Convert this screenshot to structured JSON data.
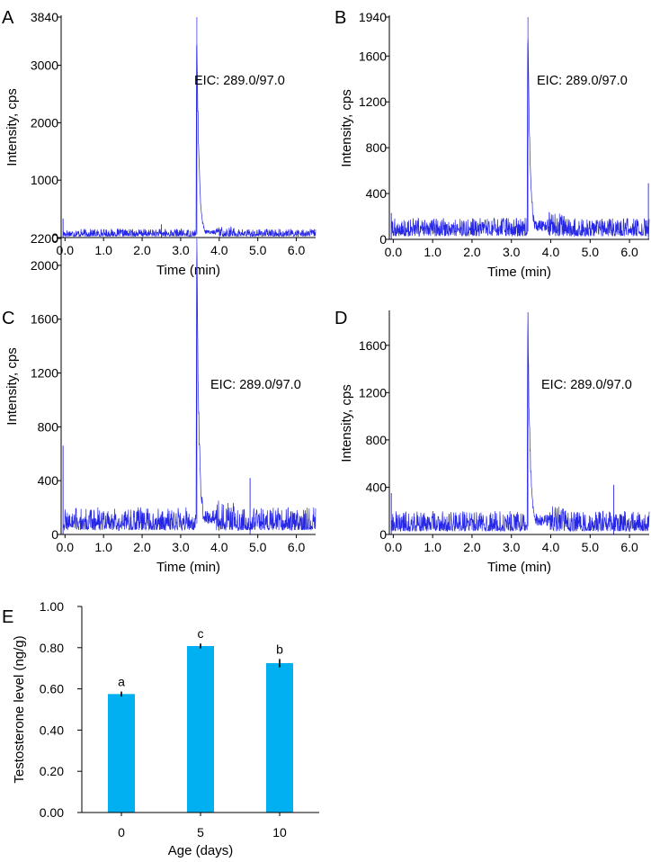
{
  "colors": {
    "trace": "#2626e6",
    "bar": "#00b0f0",
    "axis": "#000000",
    "errorbar": "#000000"
  },
  "chart_data": [
    {
      "type": "line",
      "panel": "A",
      "title": "",
      "annotation": "EIC: 289.0/97.0",
      "xlabel": "Time (min)",
      "ylabel": "Intensity, cps",
      "xlim": [
        -0.1,
        6.5
      ],
      "ylim": [
        0,
        3840
      ],
      "xticks": [
        "0.0",
        "1.0",
        "2.0",
        "3.0",
        "4.0",
        "5.0",
        "6.0"
      ],
      "yticks": [
        "0",
        "1000",
        "2000",
        "3000",
        "3840"
      ],
      "ytick_values": [
        0,
        1000,
        2000,
        3000,
        3840
      ],
      "baseline_level": 55,
      "noise_amplitude": 130,
      "peak": {
        "x": 3.42,
        "height": 3840,
        "tail_level": 300
      },
      "spikes": [
        {
          "x": -0.05,
          "y": 330
        },
        {
          "x": 2.5,
          "y": 230
        }
      ]
    },
    {
      "type": "line",
      "panel": "B",
      "title": "",
      "annotation": "EIC: 289.0/97.0",
      "xlabel": "Time (min)",
      "ylabel": "Intensity, cps",
      "xlim": [
        -0.1,
        6.5
      ],
      "ylim": [
        0,
        1940
      ],
      "xticks": [
        "0.0",
        "1.0",
        "2.0",
        "3.0",
        "4.0",
        "5.0",
        "6.0"
      ],
      "yticks": [
        "0",
        "400",
        "800",
        "1200",
        "1600",
        "1940"
      ],
      "ytick_values": [
        0,
        400,
        800,
        1200,
        1600,
        1940
      ],
      "baseline_level": 70,
      "noise_amplitude": 160,
      "peak": {
        "x": 3.42,
        "height": 1940,
        "tail_level": 450
      },
      "spikes": [
        {
          "x": 6.48,
          "y": 490
        },
        {
          "x": -0.05,
          "y": 230
        }
      ]
    },
    {
      "type": "line",
      "panel": "C",
      "title": "",
      "annotation": "EIC: 289.0/97.0",
      "xlabel": "Time (min)",
      "ylabel": "Intensity, cps",
      "xlim": [
        -0.1,
        6.5
      ],
      "ylim": [
        0,
        2200
      ],
      "xticks": [
        "0.0",
        "1.0",
        "2.0",
        "3.0",
        "4.0",
        "5.0",
        "6.0"
      ],
      "yticks": [
        "0",
        "400",
        "800",
        "1200",
        "1600",
        "2000",
        "2200"
      ],
      "ytick_values": [
        0,
        400,
        800,
        1200,
        1600,
        2000,
        2200
      ],
      "baseline_level": 80,
      "noise_amplitude": 170,
      "peak": {
        "x": 3.42,
        "height": 2200,
        "tail_level": 480
      },
      "spikes": [
        {
          "x": -0.05,
          "y": 660
        },
        {
          "x": 4.8,
          "y": 420
        }
      ]
    },
    {
      "type": "line",
      "panel": "D",
      "title": "",
      "annotation": "EIC: 289.0/97.0",
      "xlabel": "Time (min)",
      "ylabel": "Intensity, cps",
      "xlim": [
        -0.1,
        6.5
      ],
      "ylim": [
        0,
        1880
      ],
      "xticks": [
        "0.0",
        "1.0",
        "2.0",
        "3.0",
        "4.0",
        "5.0",
        "6.0"
      ],
      "yticks": [
        "0",
        "400",
        "800",
        "1200",
        "1600"
      ],
      "ytick_values": [
        0,
        400,
        800,
        1200,
        1600
      ],
      "baseline_level": 70,
      "noise_amplitude": 170,
      "peak": {
        "x": 3.42,
        "height": 1880,
        "tail_level": 450
      },
      "spikes": [
        {
          "x": 5.6,
          "y": 420
        },
        {
          "x": -0.05,
          "y": 350
        }
      ]
    },
    {
      "type": "bar",
      "panel": "E",
      "title": "",
      "xlabel": "Age (days)",
      "ylabel": "Testosterone level (ng/g)",
      "categories": [
        "0",
        "5",
        "10"
      ],
      "values": [
        0.575,
        0.808,
        0.725
      ],
      "errors": [
        0.012,
        0.012,
        0.02
      ],
      "significance": [
        "a",
        "c",
        "b"
      ],
      "ylim": [
        0,
        1.0
      ],
      "yticks": [
        "0.00",
        "0.20",
        "0.40",
        "0.60",
        "0.80",
        "1.00"
      ],
      "ytick_values": [
        0,
        0.2,
        0.4,
        0.6,
        0.8,
        1.0
      ]
    }
  ]
}
